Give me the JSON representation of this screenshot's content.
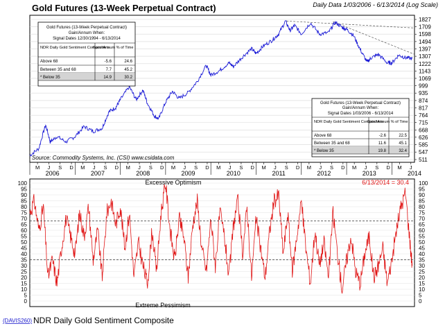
{
  "chart_data": [
    {
      "type": "line",
      "title": "Gold Futures (13-Week Perpetual Contract)",
      "subtitle": "Daily Data 1/03/2006 - 6/13/2014 (Log Scale)",
      "yscale": "log",
      "ylim": [
        511,
        1827
      ],
      "y_ticks": [
        511,
        547,
        585,
        626,
        668,
        715,
        764,
        817,
        874,
        935,
        999,
        1069,
        1143,
        1222,
        1307,
        1397,
        1494,
        1598,
        1709,
        1827
      ],
      "source": "Source: Commodity Systems, Inc. (CSI) www.csidata.com",
      "x_month_labels": [
        "M",
        "J",
        "S",
        "D",
        "M",
        "J",
        "S",
        "D",
        "M",
        "J",
        "S",
        "D",
        "M",
        "J",
        "S",
        "D",
        "M",
        "J",
        "S",
        "D",
        "M",
        "J",
        "S",
        "D",
        "M",
        "J",
        "S",
        "D",
        "M",
        "J",
        "S",
        "D",
        "M",
        "J"
      ],
      "x_year_labels": [
        "2006",
        "2007",
        "2008",
        "2009",
        "2010",
        "2011",
        "2012",
        "2013",
        "2014"
      ],
      "series": [
        {
          "name": "Gold Futures",
          "color": "#1a1ad6",
          "x": [
            2006.0,
            2006.2,
            2006.35,
            2006.45,
            2006.6,
            2006.8,
            2007.0,
            2007.2,
            2007.4,
            2007.6,
            2007.75,
            2007.9,
            2008.0,
            2008.2,
            2008.35,
            2008.5,
            2008.6,
            2008.75,
            2008.85,
            2009.0,
            2009.15,
            2009.3,
            2009.5,
            2009.7,
            2009.9,
            2010.0,
            2010.2,
            2010.4,
            2010.5,
            2010.7,
            2010.9,
            2011.0,
            2011.15,
            2011.35,
            2011.5,
            2011.65,
            2011.75,
            2011.85,
            2012.0,
            2012.2,
            2012.4,
            2012.6,
            2012.75,
            2012.9,
            2013.0,
            2013.15,
            2013.3,
            2013.45,
            2013.55,
            2013.7,
            2013.9,
            2014.0,
            2014.15,
            2014.3,
            2014.45
          ],
          "values": [
            530,
            565,
            700,
            600,
            630,
            600,
            630,
            690,
            660,
            680,
            790,
            820,
            880,
            990,
            880,
            960,
            850,
            760,
            740,
            860,
            950,
            890,
            940,
            1040,
            1200,
            1100,
            1150,
            1230,
            1190,
            1300,
            1400,
            1340,
            1430,
            1510,
            1600,
            1800,
            1650,
            1730,
            1600,
            1770,
            1600,
            1620,
            1780,
            1700,
            1670,
            1580,
            1390,
            1240,
            1290,
            1330,
            1230,
            1230,
            1320,
            1290,
            1280
          ]
        }
      ],
      "tables": [
        {
          "title": "Gold Futures (13-Week Perpetual Contract)",
          "subtitle": "Gain/Annum When:",
          "dates": "Signal Dates 12/30/1994 - 6/13/2014",
          "headers": [
            "NDR Daily Gold Sentiment Composite is",
            "Gain/ Annum",
            "% of Time"
          ],
          "rows": [
            {
              "label": "Above 68",
              "gain": "-5.6",
              "time": "24.6"
            },
            {
              "label": "Between 35 and 68",
              "gain": "7.7",
              "time": "45.2"
            },
            {
              "label": "* Below 35",
              "gain": "14.9",
              "time": "30.2"
            }
          ]
        },
        {
          "title": "Gold Futures (13-Week Perpetual Contract)",
          "subtitle": "Gain/Annum When:",
          "dates": "Signal Dates 1/03/2006 - 6/13/2014",
          "headers": [
            "NDR Daily Gold Sentiment Composite is",
            "Gain/ Annum",
            "% of Time"
          ],
          "rows": [
            {
              "label": "Above 68",
              "gain": "-2.6",
              "time": "22.5"
            },
            {
              "label": "Between 35 and 68",
              "gain": "11.6",
              "time": "45.1"
            },
            {
              "label": "* Below 35",
              "gain": "19.8",
              "time": "32.4"
            }
          ]
        }
      ]
    },
    {
      "type": "line",
      "title": "NDR Daily Gold Sentiment Composite",
      "code": "(DAVIS260)",
      "ylim": [
        0,
        100
      ],
      "y_ticks": [
        0,
        5,
        10,
        15,
        20,
        25,
        30,
        35,
        40,
        45,
        50,
        55,
        60,
        65,
        70,
        75,
        80,
        85,
        90,
        95,
        100
      ],
      "reference_lines": [
        68,
        35
      ],
      "annotations": {
        "top": "Excessive Optimism",
        "bottom": "Extreme Pessimism",
        "last": "6/13/2014 = 30.4"
      },
      "series": [
        {
          "name": "NDR Daily Gold Sentiment Composite",
          "color": "#e01414",
          "x": [
            2006.0,
            2006.1,
            2006.2,
            2006.3,
            2006.4,
            2006.5,
            2006.6,
            2006.7,
            2006.8,
            2006.9,
            2007.0,
            2007.1,
            2007.2,
            2007.3,
            2007.4,
            2007.5,
            2007.6,
            2007.7,
            2007.8,
            2007.9,
            2008.0,
            2008.1,
            2008.2,
            2008.3,
            2008.4,
            2008.5,
            2008.6,
            2008.7,
            2008.8,
            2008.9,
            2009.0,
            2009.1,
            2009.2,
            2009.3,
            2009.4,
            2009.5,
            2009.6,
            2009.7,
            2009.8,
            2009.9,
            2010.0,
            2010.1,
            2010.2,
            2010.3,
            2010.4,
            2010.5,
            2010.6,
            2010.7,
            2010.8,
            2010.9,
            2011.0,
            2011.1,
            2011.2,
            2011.3,
            2011.4,
            2011.5,
            2011.6,
            2011.7,
            2011.8,
            2011.9,
            2012.0,
            2012.1,
            2012.2,
            2012.3,
            2012.4,
            2012.5,
            2012.6,
            2012.7,
            2012.8,
            2012.9,
            2013.0,
            2013.1,
            2013.2,
            2013.3,
            2013.4,
            2013.5,
            2013.6,
            2013.7,
            2013.8,
            2013.9,
            2014.0,
            2014.1,
            2014.2,
            2014.3,
            2014.4,
            2014.45
          ],
          "values": [
            75,
            85,
            60,
            80,
            20,
            35,
            15,
            45,
            70,
            55,
            40,
            75,
            55,
            80,
            35,
            60,
            20,
            75,
            85,
            65,
            80,
            45,
            75,
            20,
            50,
            30,
            15,
            60,
            25,
            75,
            100,
            60,
            35,
            70,
            55,
            20,
            65,
            85,
            45,
            25,
            70,
            30,
            75,
            55,
            20,
            65,
            85,
            40,
            80,
            20,
            70,
            45,
            20,
            60,
            85,
            90,
            40,
            75,
            25,
            55,
            85,
            45,
            15,
            60,
            30,
            50,
            20,
            75,
            40,
            10,
            35,
            55,
            25,
            15,
            40,
            55,
            20,
            30,
            45,
            15,
            35,
            60,
            80,
            92,
            50,
            30
          ]
        }
      ]
    }
  ]
}
